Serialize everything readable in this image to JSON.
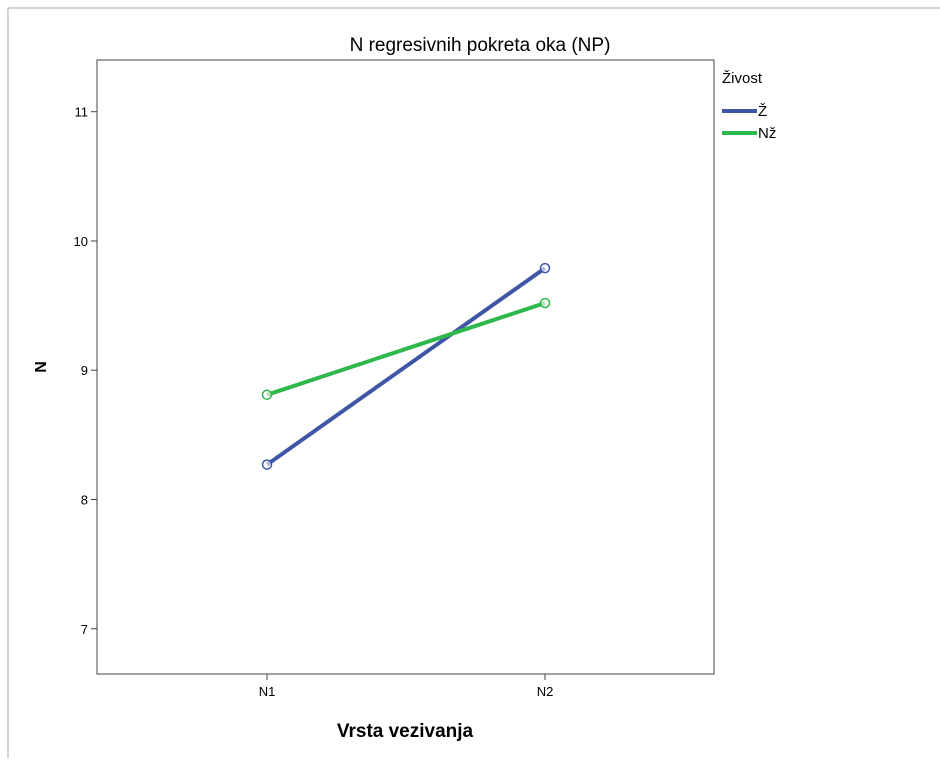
{
  "chart_data": {
    "type": "line",
    "title": "N regresivnih pokreta oka (NP)",
    "xlabel": "Vrsta vezivanja",
    "ylabel": "N",
    "categories": [
      "N1",
      "N2"
    ],
    "ylim": [
      6.65,
      11.4
    ],
    "yticks": [
      7,
      8,
      9,
      10,
      11
    ],
    "grid": false,
    "legend": {
      "title": "Živost",
      "position": "top-right-outside"
    },
    "series": [
      {
        "name": "Ž",
        "values": [
          8.27,
          9.79
        ],
        "color": "#3f56a6"
      },
      {
        "name": "Nž",
        "values": [
          8.81,
          9.52
        ],
        "color": "#2eb84b"
      }
    ]
  }
}
